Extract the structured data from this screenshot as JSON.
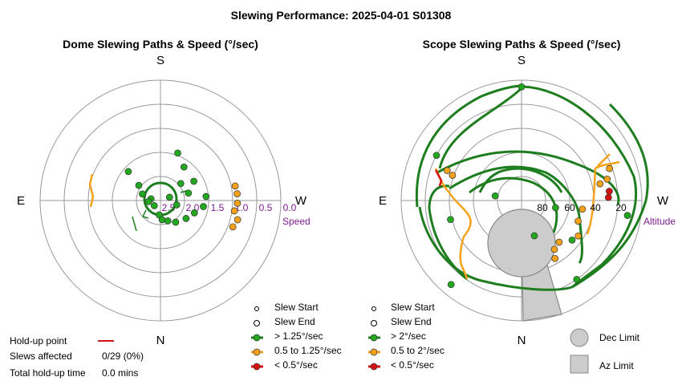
{
  "title": "Slewing Performance: 2025-04-01 S01308",
  "colors": {
    "fast": "#22a81e",
    "fast_line": "#1e7d1e",
    "medium": "#f5a21a",
    "slow": "#d61111",
    "purple": "#7a1e8c",
    "grid": "#999999",
    "limit_fill": "#cccccc",
    "limit_edge": "#888888"
  },
  "chart_data": [
    {
      "type": "polar-scatter",
      "title": "Dome Slewing Paths & Speed (°/sec)",
      "compass": {
        "top": "S",
        "bottom": "N",
        "left": "E",
        "right": "W"
      },
      "radial_axis": {
        "label": "Speed",
        "tick_labels": [
          "2.5",
          "2.0",
          "1.5",
          "1.0",
          "0.5",
          "0.0"
        ],
        "range": [
          2.5,
          0.0
        ],
        "inverted": true
      },
      "grid": true,
      "legend": {
        "entries": [
          "Slew Start",
          "Slew End",
          "> 1.25°/sec",
          "0.5 to 1.25°/sec",
          "< 0.5°/sec"
        ]
      },
      "series": [
        {
          "name": "> 1.25°/sec",
          "points": [
            {
              "az": 55,
              "speed": 1.95
            },
            {
              "az": 48,
              "speed": 1.6
            },
            {
              "az": 130,
              "speed": 2.45
            },
            {
              "az": 175,
              "speed": 2.2
            },
            {
              "az": 185,
              "speed": 2.1
            },
            {
              "az": 200,
              "speed": 2.05
            },
            {
              "az": 215,
              "speed": 1.95
            },
            {
              "az": 235,
              "speed": 1.85
            },
            {
              "az": 250,
              "speed": 1.75
            },
            {
              "az": 262,
              "speed": 1.6
            },
            {
              "az": 275,
              "speed": 1.55
            },
            {
              "az": 285,
              "speed": 1.9
            },
            {
              "az": 300,
              "speed": 1.7
            },
            {
              "az": 310,
              "speed": 1.95
            },
            {
              "az": 325,
              "speed": 1.65
            },
            {
              "az": 340,
              "speed": 1.45
            },
            {
              "az": 80,
              "speed": 2.3
            },
            {
              "az": 95,
              "speed": 2.25
            },
            {
              "az": 70,
              "speed": 2.1
            },
            {
              "az": 255,
              "speed": 2.15
            },
            {
              "az": 290,
              "speed": 2.3
            }
          ]
        },
        {
          "name": "0.5 to 1.25°/sec",
          "points": [
            {
              "az": 250,
              "speed": 0.9
            },
            {
              "az": 256,
              "speed": 0.85
            },
            {
              "az": 262,
              "speed": 0.95
            },
            {
              "az": 268,
              "speed": 0.9
            },
            {
              "az": 275,
              "speed": 0.9
            },
            {
              "az": 281,
              "speed": 0.92
            }
          ]
        },
        {
          "name": "< 0.5°/sec",
          "points": []
        }
      ]
    },
    {
      "type": "polar-scatter",
      "title": "Scope Slewing Paths & Speed (°/sec)",
      "compass": {
        "top": "S",
        "bottom": "N",
        "left": "E",
        "right": "W"
      },
      "radial_axis": {
        "label": "Altitude",
        "tick_labels": [
          "80",
          "60",
          "40",
          "20"
        ],
        "range": [
          90,
          0
        ]
      },
      "grid": true,
      "legend": {
        "entries": [
          "Slew Start",
          "Slew End",
          "> 2°/sec",
          "0.5 to 2°/sec",
          "< 0.5°/sec",
          "Dec Limit",
          "Az Limit"
        ]
      },
      "series": [
        {
          "name": "> 2°/sec",
          "points": [
            {
              "az": 0,
              "alt": 5
            },
            {
              "az": 62,
              "alt": 18
            },
            {
              "az": 80,
              "alt": 70
            },
            {
              "az": 105,
              "alt": 35
            },
            {
              "az": 140,
              "alt": 8
            },
            {
              "az": 215,
              "alt": 18
            },
            {
              "az": 262,
              "alt": 10
            },
            {
              "az": 232,
              "alt": 42
            },
            {
              "az": 258,
              "alt": 64
            },
            {
              "az": 200,
              "alt": 62
            }
          ]
        },
        {
          "name": "0.5 to 2°/sec",
          "points": [
            {
              "az": 68,
              "alt": 30
            },
            {
              "az": 70,
              "alt": 35
            },
            {
              "az": 284,
              "alt": 24
            },
            {
              "az": 290,
              "alt": 20
            },
            {
              "az": 282,
              "alt": 30
            },
            {
              "az": 262,
              "alt": 44
            },
            {
              "az": 250,
              "alt": 45
            },
            {
              "az": 238,
              "alt": 40
            },
            {
              "az": 222,
              "alt": 48
            },
            {
              "az": 214,
              "alt": 46
            },
            {
              "az": 210,
              "alt": 40
            }
          ]
        },
        {
          "name": "< 0.5°/sec",
          "points": [
            {
              "az": 276,
              "alt": 24
            },
            {
              "az": 272,
              "alt": 25
            }
          ]
        }
      ],
      "limits": {
        "dec_limit": "Dec Limit",
        "az_limit": "Az Limit"
      }
    }
  ],
  "holdup": {
    "point_label": "Hold-up point",
    "slews_affected_label": "Slews affected",
    "slews_affected_value": "0/29 (0%)",
    "total_label": "Total hold-up time",
    "total_value": "0.0 mins"
  }
}
